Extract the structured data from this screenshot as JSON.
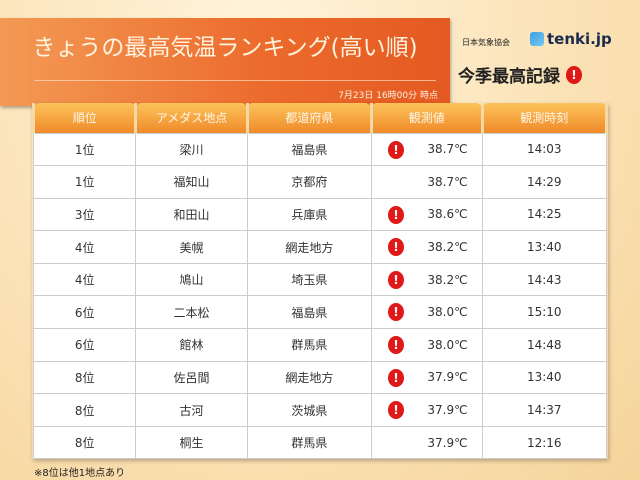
{
  "header": {
    "title": "きょうの最高気温ランキング(高い順)",
    "timestamp": "7月23日 16時00分 時点",
    "org": "日本気象協会",
    "brand": "tenki.jp",
    "legend_label": "今季最高記録",
    "legend_icon": "exclamation-icon"
  },
  "table": {
    "columns": [
      "順位",
      "アメダス地点",
      "都道府県",
      "観測値",
      "観測時刻"
    ],
    "rows": [
      {
        "rank": "1位",
        "station": "梁川",
        "pref": "福島県",
        "value": "38.7℃",
        "time": "14:03",
        "record": true
      },
      {
        "rank": "1位",
        "station": "福知山",
        "pref": "京都府",
        "value": "38.7℃",
        "time": "14:29",
        "record": false
      },
      {
        "rank": "3位",
        "station": "和田山",
        "pref": "兵庫県",
        "value": "38.6℃",
        "time": "14:25",
        "record": true
      },
      {
        "rank": "4位",
        "station": "美幌",
        "pref": "網走地方",
        "value": "38.2℃",
        "time": "13:40",
        "record": true
      },
      {
        "rank": "4位",
        "station": "鳩山",
        "pref": "埼玉県",
        "value": "38.2℃",
        "time": "14:43",
        "record": true
      },
      {
        "rank": "6位",
        "station": "二本松",
        "pref": "福島県",
        "value": "38.0℃",
        "time": "15:10",
        "record": true
      },
      {
        "rank": "6位",
        "station": "館林",
        "pref": "群馬県",
        "value": "38.0℃",
        "time": "14:48",
        "record": true
      },
      {
        "rank": "8位",
        "station": "佐呂間",
        "pref": "網走地方",
        "value": "37.9℃",
        "time": "13:40",
        "record": true
      },
      {
        "rank": "8位",
        "station": "古河",
        "pref": "茨城県",
        "value": "37.9℃",
        "time": "14:37",
        "record": true
      },
      {
        "rank": "8位",
        "station": "桐生",
        "pref": "群馬県",
        "value": "37.9℃",
        "time": "12:16",
        "record": false
      }
    ]
  },
  "note": "※8位は他1地点あり",
  "colors": {
    "header_orange": "#f08a2a",
    "record_red": "#e01818"
  }
}
